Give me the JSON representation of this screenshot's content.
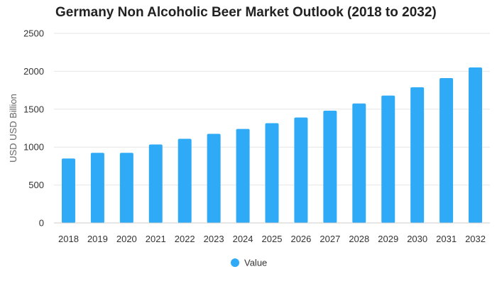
{
  "chart_data": {
    "type": "bar",
    "title": "Germany Non Alcoholic Beer Market Outlook (2018 to 2032)",
    "xlabel": "",
    "ylabel": "USD USD Billion",
    "ylim": [
      0,
      2500
    ],
    "yticks": [
      0,
      500,
      1000,
      1500,
      2000,
      2500
    ],
    "grid": true,
    "legend_position": "bottom",
    "categories": [
      "2018",
      "2019",
      "2020",
      "2021",
      "2022",
      "2023",
      "2024",
      "2025",
      "2026",
      "2027",
      "2028",
      "2029",
      "2030",
      "2031",
      "2032"
    ],
    "series": [
      {
        "name": "Value",
        "color": "#2eaaf6",
        "values": [
          850,
          925,
          925,
          1035,
          1110,
          1175,
          1240,
          1315,
          1390,
          1480,
          1575,
          1680,
          1790,
          1910,
          2050
        ]
      }
    ]
  }
}
